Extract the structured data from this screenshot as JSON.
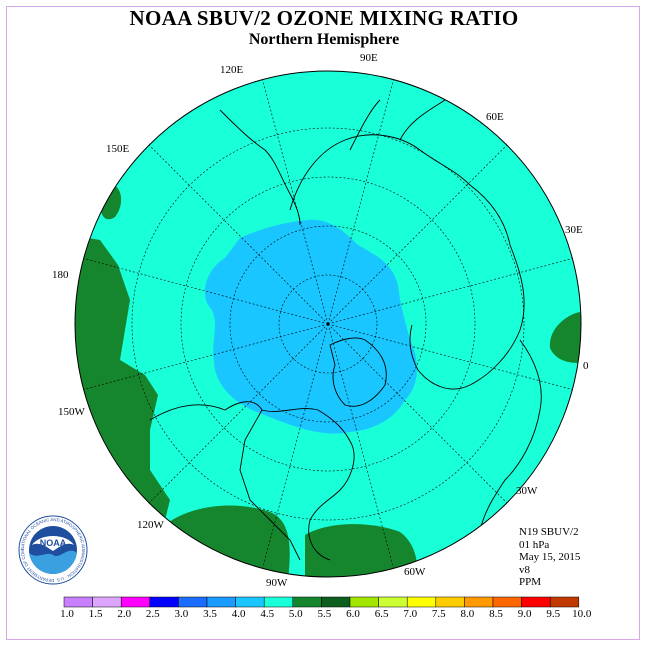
{
  "header": {
    "title": "NOAA SBUV/2 OZONE MIXING RATIO",
    "subtitle": "Northern Hemisphere"
  },
  "map": {
    "projection": "north-polar-stereographic",
    "longitude_labels": [
      "90E",
      "60E",
      "30E",
      "0",
      "30W",
      "60W",
      "90W",
      "120W",
      "150W",
      "180",
      "150E",
      "120E"
    ],
    "colors": {
      "ocean_fill": "#19ffd8",
      "low_region": "#1ac6ff",
      "high_region": "#15852e",
      "coastline": "#000000",
      "gridline": "#000000"
    }
  },
  "info": {
    "satellite": "N19 SBUV/2",
    "level": "01 hPa",
    "date": "May 15, 2015",
    "version": "v8",
    "units": "PPM"
  },
  "logo": {
    "text": "NOAA",
    "ring_text": "NATIONAL OCEANIC AND ATMOSPHERIC ADMINISTRATION · U.S. DEPARTMENT OF COMMERCE"
  },
  "colorbar": {
    "ticks": [
      "1.0",
      "1.5",
      "2.0",
      "2.5",
      "3.0",
      "3.5",
      "4.0",
      "4.5",
      "5.0",
      "5.5",
      "6.0",
      "6.5",
      "7.0",
      "7.5",
      "8.0",
      "8.5",
      "9.0",
      "9.5",
      "10.0"
    ],
    "colors": [
      "#c880ff",
      "#dca6ff",
      "#ff00ff",
      "#0000ff",
      "#1a6dff",
      "#1a9bff",
      "#1ac6ff",
      "#19ffd8",
      "#15852e",
      "#0d5f1f",
      "#a2e600",
      "#ccff33",
      "#ffff00",
      "#ffcc00",
      "#ff9900",
      "#ff6600",
      "#ff0000",
      "#c03a00",
      "#8a5a3a"
    ]
  }
}
